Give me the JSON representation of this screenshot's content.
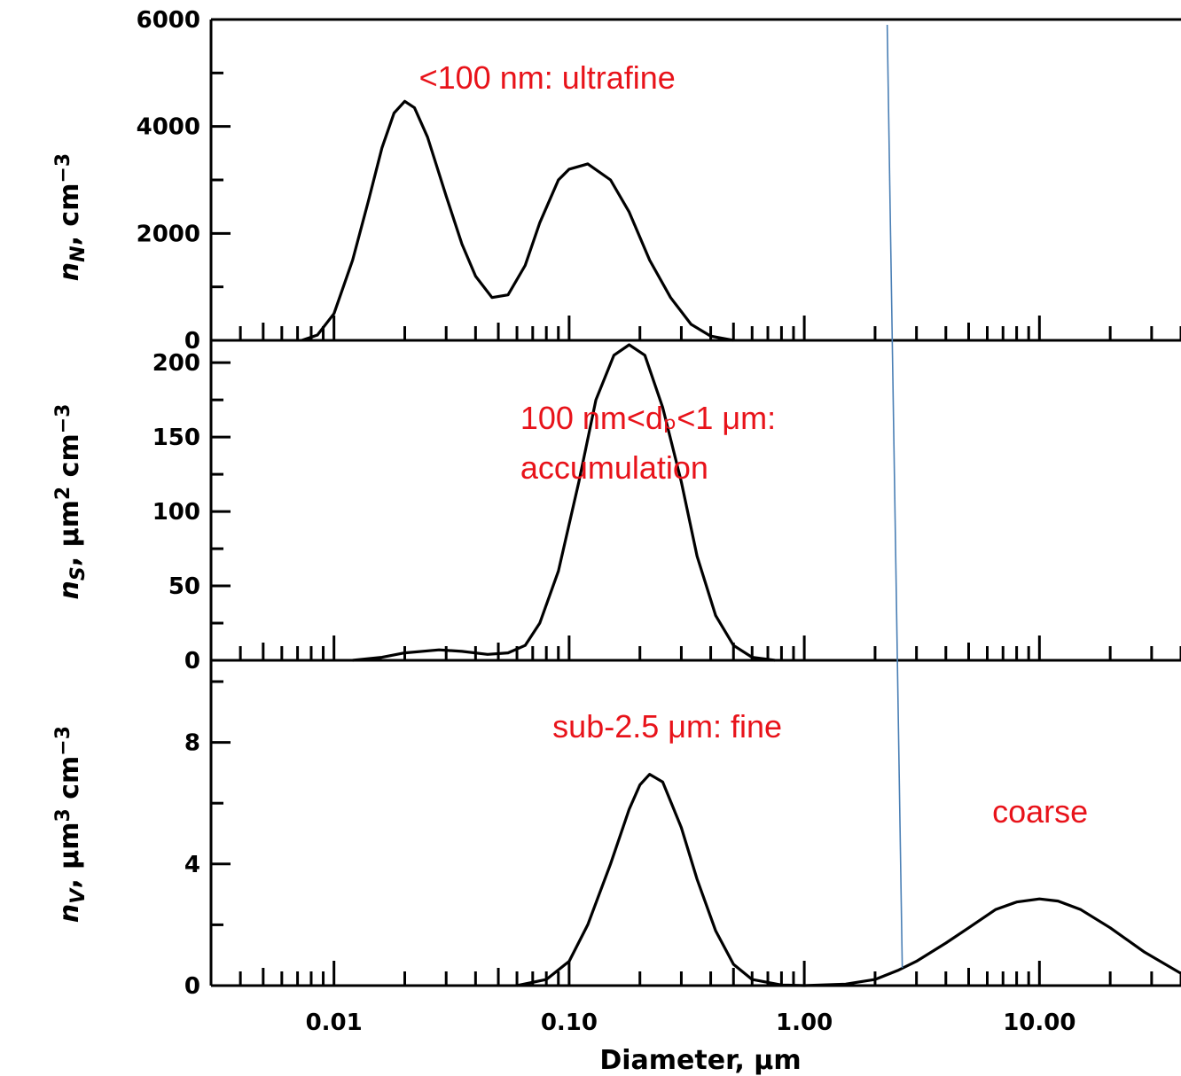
{
  "chart_data": {
    "type": "line",
    "x_scale": "log",
    "xlim": [
      0.003,
      40
    ],
    "xlabel": "Diameter,  μm",
    "x_ticks": [
      {
        "value": 0.01,
        "label": "0.01"
      },
      {
        "value": 0.1,
        "label": "0.10"
      },
      {
        "value": 1,
        "label": "1.00"
      },
      {
        "value": 10,
        "label": "10.00"
      }
    ],
    "cut_line_um": 2.5,
    "colors": {
      "curve": "#000000",
      "annotation": "#e8131a",
      "cut_line": "#4a7fb5"
    },
    "panels": [
      {
        "id": "number",
        "ylabel": {
          "main": "n",
          "sub": "N",
          "unit": ", cm",
          "exp": "−3"
        },
        "ylim": [
          0,
          6000
        ],
        "y_ticks": [
          {
            "value": 0,
            "label": "0"
          },
          {
            "value": 2000,
            "label": "2000"
          },
          {
            "value": 4000,
            "label": "4000"
          },
          {
            "value": 6000,
            "label": "6000"
          }
        ],
        "annotations": [
          {
            "lines": [
              "<100 nm: ultrafine"
            ],
            "x_um": 0.023
          }
        ],
        "series": [
          {
            "x": [
              0.0073,
              0.0085,
              0.01,
              0.012,
              0.014,
              0.016,
              0.018,
              0.02,
              0.022,
              0.025,
              0.03,
              0.035,
              0.04,
              0.047,
              0.055,
              0.065,
              0.075,
              0.09,
              0.1,
              0.12,
              0.15,
              0.18,
              0.22,
              0.27,
              0.33,
              0.4,
              0.5
            ],
            "y": [
              0,
              100,
              500,
              1500,
              2600,
              3600,
              4250,
              4470,
              4350,
              3800,
              2700,
              1800,
              1200,
              800,
              850,
              1400,
              2200,
              3000,
              3200,
              3300,
              3000,
              2400,
              1500,
              800,
              300,
              80,
              0
            ]
          }
        ]
      },
      {
        "id": "surface",
        "ylabel": {
          "main": "n",
          "sub": "S",
          "unit": ", μm",
          "mid_exp": "2",
          "unit2": " cm",
          "exp": "−3"
        },
        "ylim": [
          0,
          215
        ],
        "y_ticks": [
          {
            "value": 0,
            "label": "0"
          },
          {
            "value": 50,
            "label": "50"
          },
          {
            "value": 100,
            "label": "100"
          },
          {
            "value": 150,
            "label": "150"
          },
          {
            "value": 200,
            "label": "200"
          }
        ],
        "annotations": [
          {
            "lines": [
              "100 nm<dₚ<1 μm:",
              "accumulation"
            ],
            "x_um": 0.062
          }
        ],
        "series": [
          {
            "x": [
              0.012,
              0.016,
              0.02,
              0.028,
              0.035,
              0.045,
              0.055,
              0.065,
              0.075,
              0.09,
              0.11,
              0.13,
              0.155,
              0.18,
              0.21,
              0.25,
              0.3,
              0.35,
              0.42,
              0.5,
              0.6,
              0.75
            ],
            "y": [
              0,
              2,
              5,
              7,
              6,
              4,
              5,
              10,
              25,
              60,
              120,
              175,
              205,
              212,
              205,
              170,
              120,
              70,
              30,
              10,
              2,
              0
            ]
          }
        ]
      },
      {
        "id": "volume",
        "ylabel": {
          "main": "n",
          "sub": "V",
          "unit": ", μm",
          "mid_exp": "3",
          "unit2": " cm",
          "exp": "−3"
        },
        "ylim": [
          0,
          10.7
        ],
        "y_ticks": [
          {
            "value": 0,
            "label": "0"
          },
          {
            "value": 4,
            "label": "4"
          },
          {
            "value": 8,
            "label": "8"
          }
        ],
        "annotations": [
          {
            "lines": [
              "sub-2.5 μm: fine"
            ],
            "x_um": 0.085
          },
          {
            "lines": [
              "coarse"
            ],
            "x_um": 6.3
          }
        ],
        "series": [
          {
            "x": [
              0.06,
              0.08,
              0.1,
              0.12,
              0.15,
              0.18,
              0.2,
              0.22,
              0.25,
              0.3,
              0.35,
              0.42,
              0.5,
              0.6,
              0.8,
              1,
              1.5,
              2,
              2.5,
              3,
              4,
              5,
              6.5,
              8,
              10,
              12,
              15,
              20,
              28,
              40
            ],
            "y": [
              0,
              0.2,
              0.8,
              2,
              4,
              5.8,
              6.6,
              6.95,
              6.7,
              5.2,
              3.5,
              1.8,
              0.7,
              0.2,
              0.02,
              0,
              0.05,
              0.2,
              0.5,
              0.8,
              1.4,
              1.9,
              2.5,
              2.75,
              2.85,
              2.78,
              2.5,
              1.9,
              1.1,
              0.4
            ]
          }
        ]
      }
    ]
  }
}
